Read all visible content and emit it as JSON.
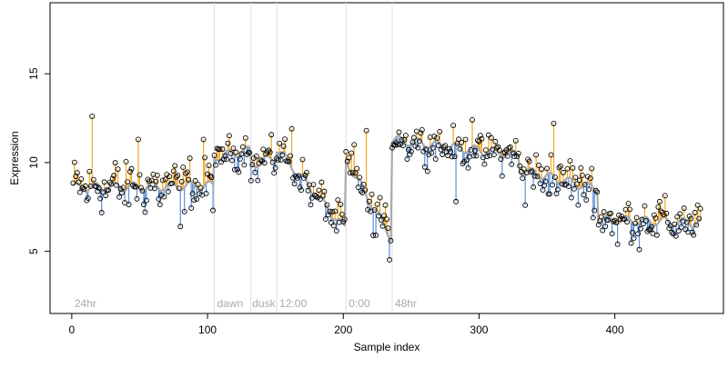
{
  "chart_data": {
    "type": "scatter",
    "title": "",
    "xlabel": "Sample index",
    "ylabel": "Expression",
    "xlim": [
      -16,
      480
    ],
    "ylim": [
      1.5,
      19
    ],
    "xticks": [
      0,
      100,
      200,
      300,
      400
    ],
    "yticks": [
      5,
      10,
      15
    ],
    "grid": false,
    "legend": "none",
    "colors": {
      "above_fit": "#f5a623",
      "below_fit": "#5b8fd6",
      "fit_line": "#aaaaaa",
      "divider": "#dddddd",
      "annotation": "#aaaaaa",
      "points": "#000000"
    },
    "dividers": [
      105,
      132,
      151,
      202,
      236
    ],
    "annotations": [
      {
        "x": 2,
        "text": "24hr"
      },
      {
        "x": 107,
        "text": "dawn"
      },
      {
        "x": 133,
        "text": "dusk"
      },
      {
        "x": 153,
        "text": "12:00"
      },
      {
        "x": 204,
        "text": "0:00"
      },
      {
        "x": 238,
        "text": "48hr"
      }
    ],
    "segments": [
      {
        "x0": 1,
        "x1": 105,
        "start": 8.6,
        "end": 8.7,
        "noise": 1.1
      },
      {
        "x0": 105,
        "x1": 132,
        "start": 10.3,
        "end": 10.7,
        "noise": 0.6
      },
      {
        "x0": 132,
        "x1": 151,
        "start": 9.9,
        "end": 10.3,
        "noise": 0.8
      },
      {
        "x0": 151,
        "x1": 202,
        "start": 10.8,
        "end": 6.2,
        "noise": 0.7
      },
      {
        "x0": 202,
        "x1": 236,
        "start": 10.1,
        "end": 5.7,
        "noise": 0.9
      },
      {
        "x0": 236,
        "x1": 330,
        "start": 11.3,
        "end": 10.4,
        "noise": 0.7
      },
      {
        "x0": 330,
        "x1": 388,
        "start": 9.6,
        "end": 8.5,
        "noise": 1.0
      },
      {
        "x0": 388,
        "x1": 464,
        "start": 6.8,
        "end": 6.6,
        "noise": 0.8
      }
    ],
    "highlights": [
      {
        "x": 15,
        "y": 12.6
      },
      {
        "x": 49,
        "y": 11.3
      },
      {
        "x": 97,
        "y": 11.3
      },
      {
        "x": 80,
        "y": 6.4
      },
      {
        "x": 162,
        "y": 11.9
      },
      {
        "x": 208,
        "y": 11.0
      },
      {
        "x": 217,
        "y": 11.8
      },
      {
        "x": 222,
        "y": 5.9
      },
      {
        "x": 233,
        "y": 6.3
      },
      {
        "x": 235,
        "y": 5.6
      },
      {
        "x": 295,
        "y": 12.4
      },
      {
        "x": 283,
        "y": 7.8
      },
      {
        "x": 334,
        "y": 7.6
      },
      {
        "x": 355,
        "y": 12.2
      },
      {
        "x": 402,
        "y": 5.4
      },
      {
        "x": 418,
        "y": 5.1
      },
      {
        "x": 433,
        "y": 7.8
      },
      {
        "x": 463,
        "y": 7.4
      }
    ]
  }
}
